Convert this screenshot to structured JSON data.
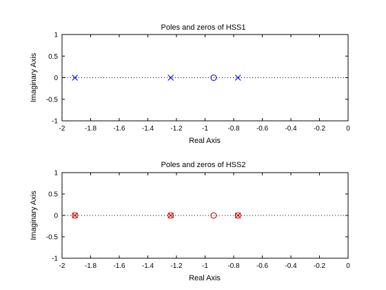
{
  "chart_data": [
    {
      "type": "scatter",
      "title": "Poles and zeros of HSS1",
      "xlabel": "Real Axis",
      "ylabel": "Imaginary Axis",
      "xlim": [
        -2,
        0
      ],
      "ylim": [
        -1,
        1
      ],
      "xticks": [
        -2,
        -1.8,
        -1.6,
        -1.4,
        -1.2,
        -1,
        -0.8,
        -0.6,
        -0.4,
        -0.2,
        0
      ],
      "xtick_labels": [
        "-2",
        "-1.8",
        "-1.6",
        "-1.4",
        "-1.2",
        "-1",
        "-0.8",
        "-0.6",
        "-0.4",
        "-0.2",
        "0"
      ],
      "yticks": [
        -1,
        -0.5,
        0,
        0.5,
        1
      ],
      "ytick_labels": [
        "-1",
        "-0.5",
        "0",
        "0.5",
        "1"
      ],
      "color": "#0000ff",
      "series": [
        {
          "name": "poles",
          "marker": "x",
          "x": [
            -1.91,
            -1.24,
            -0.77
          ],
          "y": [
            0,
            0,
            0
          ]
        },
        {
          "name": "zeros",
          "marker": "o",
          "x": [
            -0.94
          ],
          "y": [
            0
          ]
        }
      ]
    },
    {
      "type": "scatter",
      "title": "Poles and zeros of HSS2",
      "xlabel": "Real Axis",
      "ylabel": "Imaginary Axis",
      "xlim": [
        -2,
        0
      ],
      "ylim": [
        -1,
        1
      ],
      "xticks": [
        -2,
        -1.8,
        -1.6,
        -1.4,
        -1.2,
        -1,
        -0.8,
        -0.6,
        -0.4,
        -0.2,
        0
      ],
      "xtick_labels": [
        "-2",
        "-1.8",
        "-1.6",
        "-1.4",
        "-1.2",
        "-1",
        "-0.8",
        "-0.6",
        "-0.4",
        "-0.2",
        "0"
      ],
      "yticks": [
        -1,
        -0.5,
        0,
        0.5,
        1
      ],
      "ytick_labels": [
        "-1",
        "-0.5",
        "0",
        "0.5",
        "1"
      ],
      "color": "#cc0000",
      "series": [
        {
          "name": "poles",
          "marker": "x",
          "x": [
            -1.91,
            -1.24,
            -0.77
          ],
          "y": [
            0,
            0,
            0
          ]
        },
        {
          "name": "zeros",
          "marker": "o",
          "x": [
            -1.91,
            -1.24,
            -0.94,
            -0.77
          ],
          "y": [
            0,
            0,
            0,
            0
          ]
        }
      ]
    }
  ]
}
